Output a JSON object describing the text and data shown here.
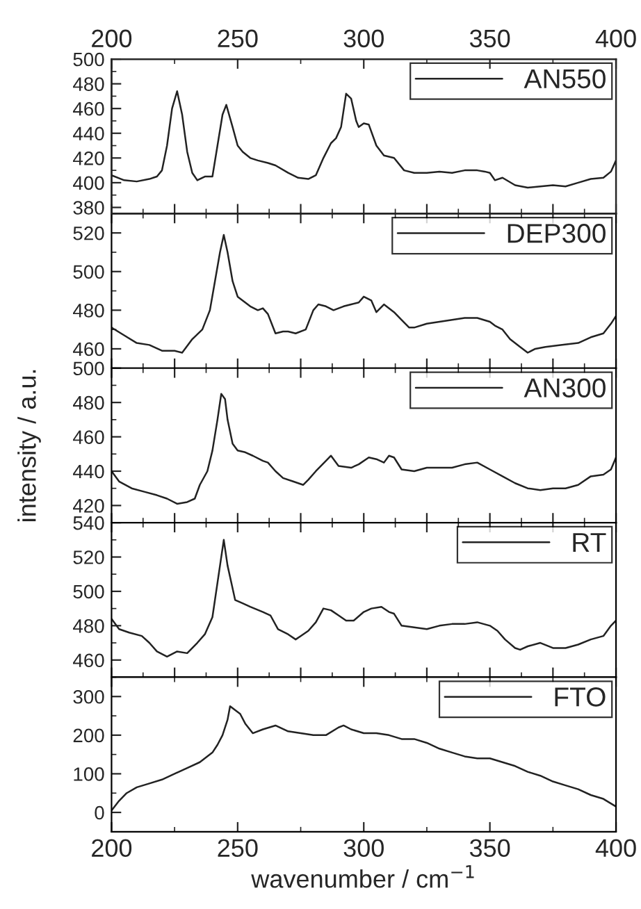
{
  "chart_data": [
    {
      "type": "line",
      "x2lim": [
        200,
        400
      ],
      "x2ticks": [
        200,
        250,
        300,
        350,
        400
      ],
      "xlim": [
        200,
        400
      ],
      "ylim": [
        375,
        500
      ],
      "yticks": [
        380,
        400,
        420,
        440,
        460,
        480,
        500
      ],
      "tick_labels": "y",
      "legend": "top right",
      "grid": false,
      "series": [
        {
          "name": "AN550",
          "color": "#222222",
          "x": [
            200,
            205,
            210,
            215,
            218,
            220,
            222,
            224,
            226,
            228,
            230,
            232,
            234,
            237,
            240,
            242,
            244,
            245.5,
            248,
            250,
            252,
            255,
            258,
            262,
            265,
            270,
            274,
            278,
            281,
            284,
            287,
            289,
            291,
            293,
            295,
            297,
            298,
            300,
            302,
            305,
            308,
            312,
            316,
            320,
            325,
            330,
            335,
            340,
            345,
            348,
            350,
            352,
            355,
            360,
            365,
            370,
            375,
            380,
            385,
            390,
            395,
            398,
            400
          ],
          "values": [
            406,
            402,
            401,
            403,
            405,
            410,
            430,
            460,
            474,
            455,
            425,
            408,
            402,
            405,
            405,
            430,
            455,
            463,
            445,
            430,
            425,
            420,
            418,
            416,
            414,
            408,
            404,
            403,
            406,
            420,
            432,
            436,
            445,
            472,
            468,
            450,
            445,
            448,
            447,
            430,
            422,
            420,
            410,
            408,
            408,
            409,
            408,
            410,
            410,
            409,
            408,
            402,
            404,
            398,
            396,
            397,
            398,
            397,
            400,
            403,
            404,
            409,
            418
          ]
        }
      ]
    },
    {
      "type": "line",
      "xlim": [
        200,
        400
      ],
      "ylim": [
        450,
        530
      ],
      "yticks": [
        460,
        480,
        500,
        520
      ],
      "tick_labels": "y",
      "legend": "top right",
      "grid": false,
      "series": [
        {
          "name": "DEP300",
          "color": "#222222",
          "x": [
            200,
            205,
            210,
            215,
            220,
            225,
            228,
            232,
            236,
            239,
            241,
            243,
            244.5,
            246,
            248,
            250,
            252,
            255,
            258,
            260,
            262,
            265,
            268,
            270,
            273,
            277,
            280,
            282,
            285,
            288,
            292,
            295,
            298,
            300,
            303,
            305,
            308,
            312,
            315,
            318,
            320,
            325,
            330,
            335,
            340,
            345,
            350,
            352,
            355,
            358,
            362,
            365,
            368,
            372,
            378,
            385,
            390,
            395,
            398,
            400
          ],
          "values": [
            471,
            467,
            463,
            462,
            459,
            459,
            458,
            465,
            470,
            480,
            495,
            510,
            519,
            510,
            495,
            487,
            485,
            482,
            480,
            481,
            478,
            468,
            469,
            469,
            468,
            470,
            480,
            483,
            482,
            480,
            482,
            483,
            484,
            487,
            485,
            479,
            483,
            479,
            475,
            471,
            471,
            473,
            474,
            475,
            476,
            476,
            474,
            472,
            470,
            465,
            461,
            458,
            460,
            461,
            462,
            463,
            466,
            468,
            473,
            477
          ]
        }
      ]
    },
    {
      "type": "line",
      "xlim": [
        200,
        400
      ],
      "ylim": [
        410,
        500
      ],
      "yticks": [
        420,
        440,
        460,
        480,
        500
      ],
      "tick_labels": "y",
      "legend": "top right",
      "grid": false,
      "ylabel": "intensity / a.u.",
      "series": [
        {
          "name": "AN300",
          "color": "#222222",
          "x": [
            200,
            203,
            208,
            213,
            218,
            222,
            226,
            230,
            233,
            235,
            238,
            240,
            242,
            243.5,
            245,
            246,
            248,
            250,
            253,
            256,
            260,
            262,
            265,
            268,
            272,
            276,
            278,
            281,
            285,
            287,
            290,
            295,
            298,
            302,
            305,
            308,
            310,
            312,
            315,
            320,
            325,
            330,
            335,
            340,
            345,
            350,
            355,
            360,
            365,
            370,
            375,
            380,
            385,
            390,
            395,
            398,
            400
          ],
          "values": [
            440,
            434,
            430,
            428,
            426,
            424,
            421,
            422,
            424,
            432,
            440,
            452,
            470,
            485,
            482,
            470,
            456,
            452,
            451,
            449,
            446,
            445,
            440,
            436,
            434,
            432,
            435,
            440,
            446,
            449,
            443,
            442,
            444,
            448,
            447,
            445,
            449,
            448,
            441,
            440,
            442,
            442,
            442,
            444,
            445,
            441,
            437,
            433,
            430,
            429,
            430,
            430,
            432,
            437,
            438,
            441,
            448
          ]
        }
      ]
    },
    {
      "type": "line",
      "xlim": [
        200,
        400
      ],
      "ylim": [
        450,
        540
      ],
      "yticks": [
        460,
        480,
        500,
        520,
        540
      ],
      "tick_labels": "y",
      "legend": "top right",
      "grid": false,
      "series": [
        {
          "name": "RT",
          "color": "#222222",
          "x": [
            200,
            203,
            207,
            212,
            215,
            218,
            222,
            226,
            230,
            234,
            237,
            240,
            242,
            244.5,
            246,
            247.5,
            249,
            252,
            255,
            260,
            263,
            266,
            270,
            273,
            275,
            278,
            281,
            284,
            287,
            290,
            293,
            296,
            300,
            303,
            307,
            310,
            312,
            315,
            320,
            325,
            330,
            335,
            340,
            345,
            350,
            353,
            356,
            360,
            362,
            365,
            370,
            375,
            380,
            385,
            390,
            395,
            398,
            400
          ],
          "values": [
            484,
            478,
            476,
            474,
            470,
            465,
            462,
            465,
            464,
            470,
            475,
            485,
            505,
            530,
            515,
            505,
            495,
            493,
            491,
            488,
            486,
            478,
            475,
            472,
            474,
            477,
            482,
            490,
            489,
            486,
            483,
            483,
            488,
            490,
            491,
            488,
            487,
            480,
            479,
            478,
            480,
            481,
            481,
            482,
            480,
            477,
            472,
            467,
            466,
            468,
            470,
            467,
            467,
            469,
            472,
            474,
            480,
            483
          ]
        }
      ]
    },
    {
      "type": "line",
      "xlim": [
        200,
        400
      ],
      "xticks": [
        200,
        250,
        300,
        350,
        400
      ],
      "ylim": [
        -50,
        350
      ],
      "yticks": [
        0,
        100,
        200,
        300
      ],
      "legend": "top right",
      "grid": false,
      "xlabel": "wavenumber / cm$^{−1}$",
      "series": [
        {
          "name": "FTO",
          "color": "#222222",
          "x": [
            200,
            203,
            206,
            210,
            215,
            220,
            225,
            230,
            235,
            240,
            242,
            244,
            246,
            247,
            249,
            251,
            253,
            256,
            260,
            265,
            270,
            275,
            280,
            285,
            290,
            292,
            295,
            300,
            305,
            310,
            315,
            320,
            325,
            330,
            335,
            340,
            345,
            350,
            355,
            360,
            365,
            370,
            375,
            380,
            385,
            390,
            395,
            400
          ],
          "values": [
            5,
            30,
            50,
            65,
            75,
            85,
            100,
            115,
            130,
            155,
            175,
            200,
            240,
            275,
            265,
            255,
            230,
            205,
            215,
            225,
            210,
            205,
            200,
            200,
            220,
            225,
            215,
            205,
            205,
            200,
            190,
            190,
            180,
            165,
            155,
            145,
            140,
            140,
            130,
            120,
            105,
            95,
            80,
            70,
            60,
            45,
            35,
            15
          ]
        }
      ]
    }
  ]
}
